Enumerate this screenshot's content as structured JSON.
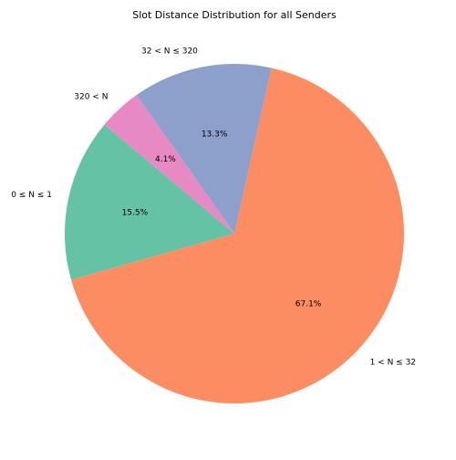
{
  "chart_data": {
    "type": "pie",
    "title": "Slot Distance Distribution for all Senders",
    "slices": [
      {
        "label": "0 ≤ N ≤ 1",
        "value": 15.5,
        "pct_label": "15.5%",
        "color": "#66c2a5"
      },
      {
        "label": "1 < N ≤ 32",
        "value": 67.1,
        "pct_label": "67.1%",
        "color": "#fc8d62"
      },
      {
        "label": "32 < N ≤ 320",
        "value": 13.3,
        "pct_label": "13.3%",
        "color": "#8da0cb"
      },
      {
        "label": "320 < N",
        "value": 4.1,
        "pct_label": "4.1%",
        "color": "#e78ac3"
      }
    ],
    "start_angle": 140,
    "direction": "counterclockwise",
    "legend": "none"
  }
}
